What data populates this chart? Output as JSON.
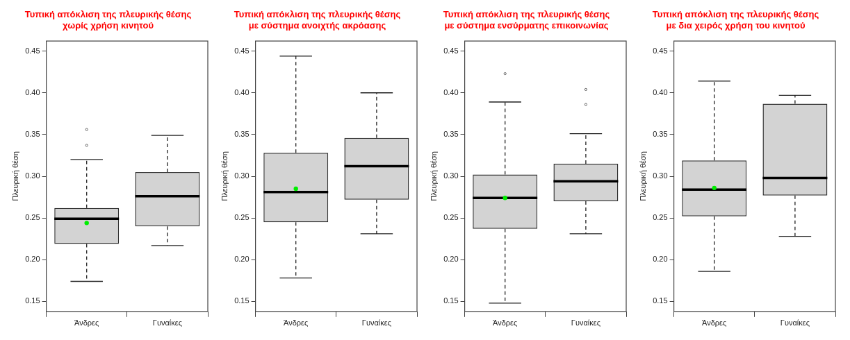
{
  "chart_data": [
    {
      "type": "box",
      "title": "Τυπική απόκλιση της πλευρικής θέσης\nχωρίς χρήση κινητού",
      "ylabel": "Πλευρική θέση",
      "categories": [
        "Άνδρες",
        "Γυναίκες"
      ],
      "ylim": [
        0.138,
        0.462
      ],
      "yticks": [
        0.15,
        {
          "value": 0.2,
          "label": "0.20"
        },
        0.25,
        {
          "value": 0.3,
          "label": "0.30"
        },
        0.35,
        {
          "value": 0.4,
          "label": "0.40"
        },
        0.45
      ],
      "boxes": [
        {
          "low": 0.174,
          "q1": 0.219,
          "median": 0.249,
          "q3": 0.262,
          "high": 0.32,
          "mean": 0.244,
          "outliers": [
            0.337,
            0.356
          ]
        },
        {
          "low": 0.217,
          "q1": 0.24,
          "median": 0.276,
          "q3": 0.305,
          "high": 0.349
        }
      ]
    },
    {
      "type": "box",
      "title": "Τυπική απόκλιση της πλευρικής θέσης\nμε σύστημα ανοιχτής ακρόασης",
      "ylabel": "Πλευρική θέση",
      "categories": [
        "Άνδρες",
        "Γυναίκες"
      ],
      "ylim": [
        0.138,
        0.462
      ],
      "yticks": [
        0.15,
        {
          "value": 0.2,
          "label": "0.20"
        },
        0.25,
        {
          "value": 0.3,
          "label": "0.30"
        },
        0.35,
        {
          "value": 0.4,
          "label": "0.40"
        },
        0.45
      ],
      "boxes": [
        {
          "low": 0.178,
          "q1": 0.245,
          "median": 0.281,
          "q3": 0.328,
          "high": 0.444,
          "mean": 0.285
        },
        {
          "low": 0.231,
          "q1": 0.272,
          "median": 0.312,
          "q3": 0.346,
          "high": 0.4
        }
      ]
    },
    {
      "type": "box",
      "title": "Τυπική απόκλιση της πλευρικής θέσης\nμε σύστημα ενσύρματης επικοινωνίας",
      "ylabel": "Πλευρική θέση",
      "categories": [
        "Άνδρες",
        "Γυναίκες"
      ],
      "ylim": [
        0.138,
        0.462
      ],
      "yticks": [
        0.15,
        {
          "value": 0.2,
          "label": "0.20"
        },
        0.25,
        {
          "value": 0.3,
          "label": "0.30"
        },
        0.35,
        {
          "value": 0.4,
          "label": "0.40"
        },
        0.45
      ],
      "boxes": [
        {
          "low": 0.148,
          "q1": 0.237,
          "median": 0.274,
          "q3": 0.302,
          "high": 0.389,
          "mean": 0.274,
          "outliers": [
            0.423
          ]
        },
        {
          "low": 0.231,
          "q1": 0.27,
          "median": 0.294,
          "q3": 0.315,
          "high": 0.351,
          "outliers": [
            0.386,
            0.404
          ]
        }
      ]
    },
    {
      "type": "box",
      "title": "Τυπική απόκλιση της πλευρικής θέσης\nμε δια χειρός χρήση του κινητού",
      "ylabel": "Πλευρική θέση",
      "categories": [
        "Άνδρες",
        "Γυναίκες"
      ],
      "ylim": [
        0.138,
        0.462
      ],
      "yticks": [
        0.15,
        {
          "value": 0.2,
          "label": "0.20"
        },
        0.25,
        {
          "value": 0.3,
          "label": "0.30"
        },
        0.35,
        {
          "value": 0.4,
          "label": "0.40"
        },
        0.45
      ],
      "boxes": [
        {
          "low": 0.186,
          "q1": 0.252,
          "median": 0.284,
          "q3": 0.319,
          "high": 0.414,
          "mean": 0.286
        },
        {
          "low": 0.228,
          "q1": 0.277,
          "median": 0.298,
          "q3": 0.387,
          "high": 0.397
        }
      ]
    }
  ]
}
